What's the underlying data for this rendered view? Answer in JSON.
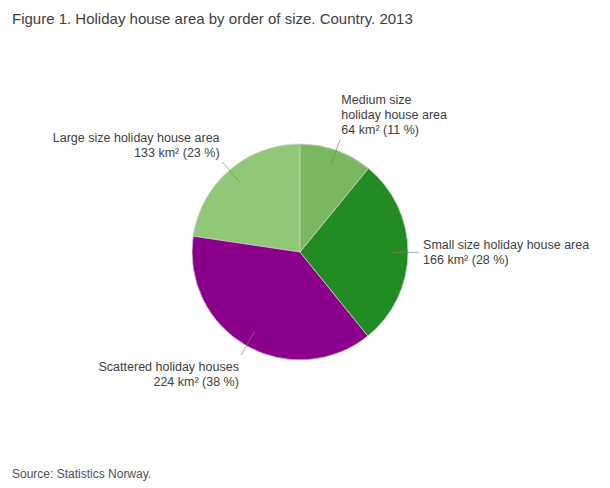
{
  "chart_data": {
    "type": "pie",
    "title": "Figure 1. Holiday house area by order of size. Country. 2013",
    "source": "Source: Statistics Norway.",
    "categories": [
      "Large size holiday house area\n133 km² (23 %)",
      "Scattered holiday houses\n224 km² (38 %)",
      "Small size holiday house area\n166 km² (28 %)",
      "Medium size\nholiday house area\n64 km² (11 %)"
    ],
    "values": [
      133,
      224,
      166,
      64
    ],
    "colors": [
      "#90C878",
      "#8B008B",
      "#228B22",
      "#7AB860"
    ]
  }
}
